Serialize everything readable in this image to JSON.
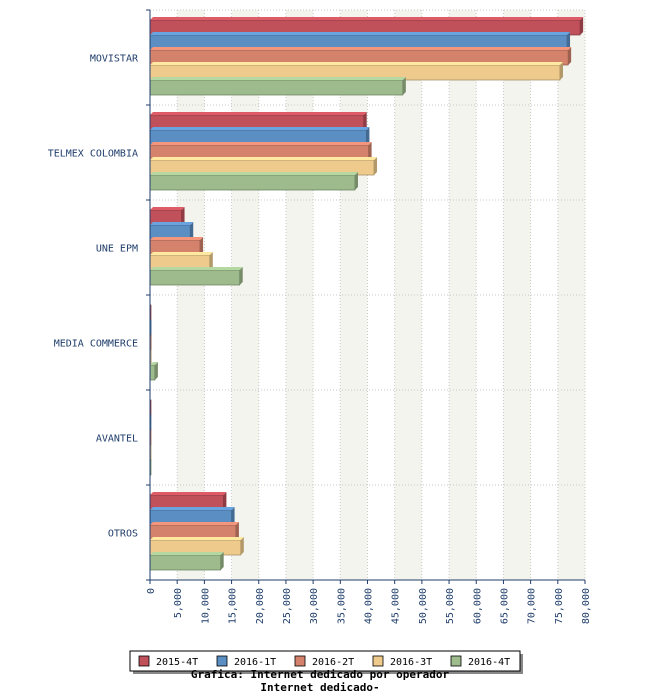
{
  "chart_data": {
    "type": "bar",
    "orientation": "horizontal",
    "title": "Grafica: Internet dedicado por operador",
    "subtitle": "Internet dedicado-",
    "xlim": [
      0,
      80000
    ],
    "x_ticks": [
      "0",
      "5,000",
      "10,000",
      "15,000",
      "20,000",
      "25,000",
      "30,000",
      "35,000",
      "40,000",
      "45,000",
      "50,000",
      "55,000",
      "60,000",
      "65,000",
      "70,000",
      "75,000",
      "80,000"
    ],
    "categories": [
      "MOVISTAR",
      "TELMEX COLOMBIA",
      "UNE EPM",
      "MEDIA COMMERCE",
      "AVANTEL",
      "OTROS"
    ],
    "series": [
      {
        "name": "2015-4T",
        "color": "#c0505a",
        "values": [
          79100,
          39300,
          5800,
          150,
          20,
          13500
        ]
      },
      {
        "name": "2016-1T",
        "color": "#5b8fc4",
        "values": [
          76700,
          39800,
          7400,
          200,
          20,
          15000
        ]
      },
      {
        "name": "2016-2T",
        "color": "#d4826c",
        "values": [
          76900,
          40200,
          9200,
          200,
          20,
          15800
        ]
      },
      {
        "name": "2016-3T",
        "color": "#eecb8c",
        "values": [
          75400,
          41200,
          11000,
          200,
          20,
          16700
        ]
      },
      {
        "name": "2016-4T",
        "color": "#9dbb8c",
        "values": [
          46500,
          37700,
          16500,
          900,
          20,
          13000
        ]
      }
    ],
    "grid": true,
    "legend": "bottom"
  }
}
